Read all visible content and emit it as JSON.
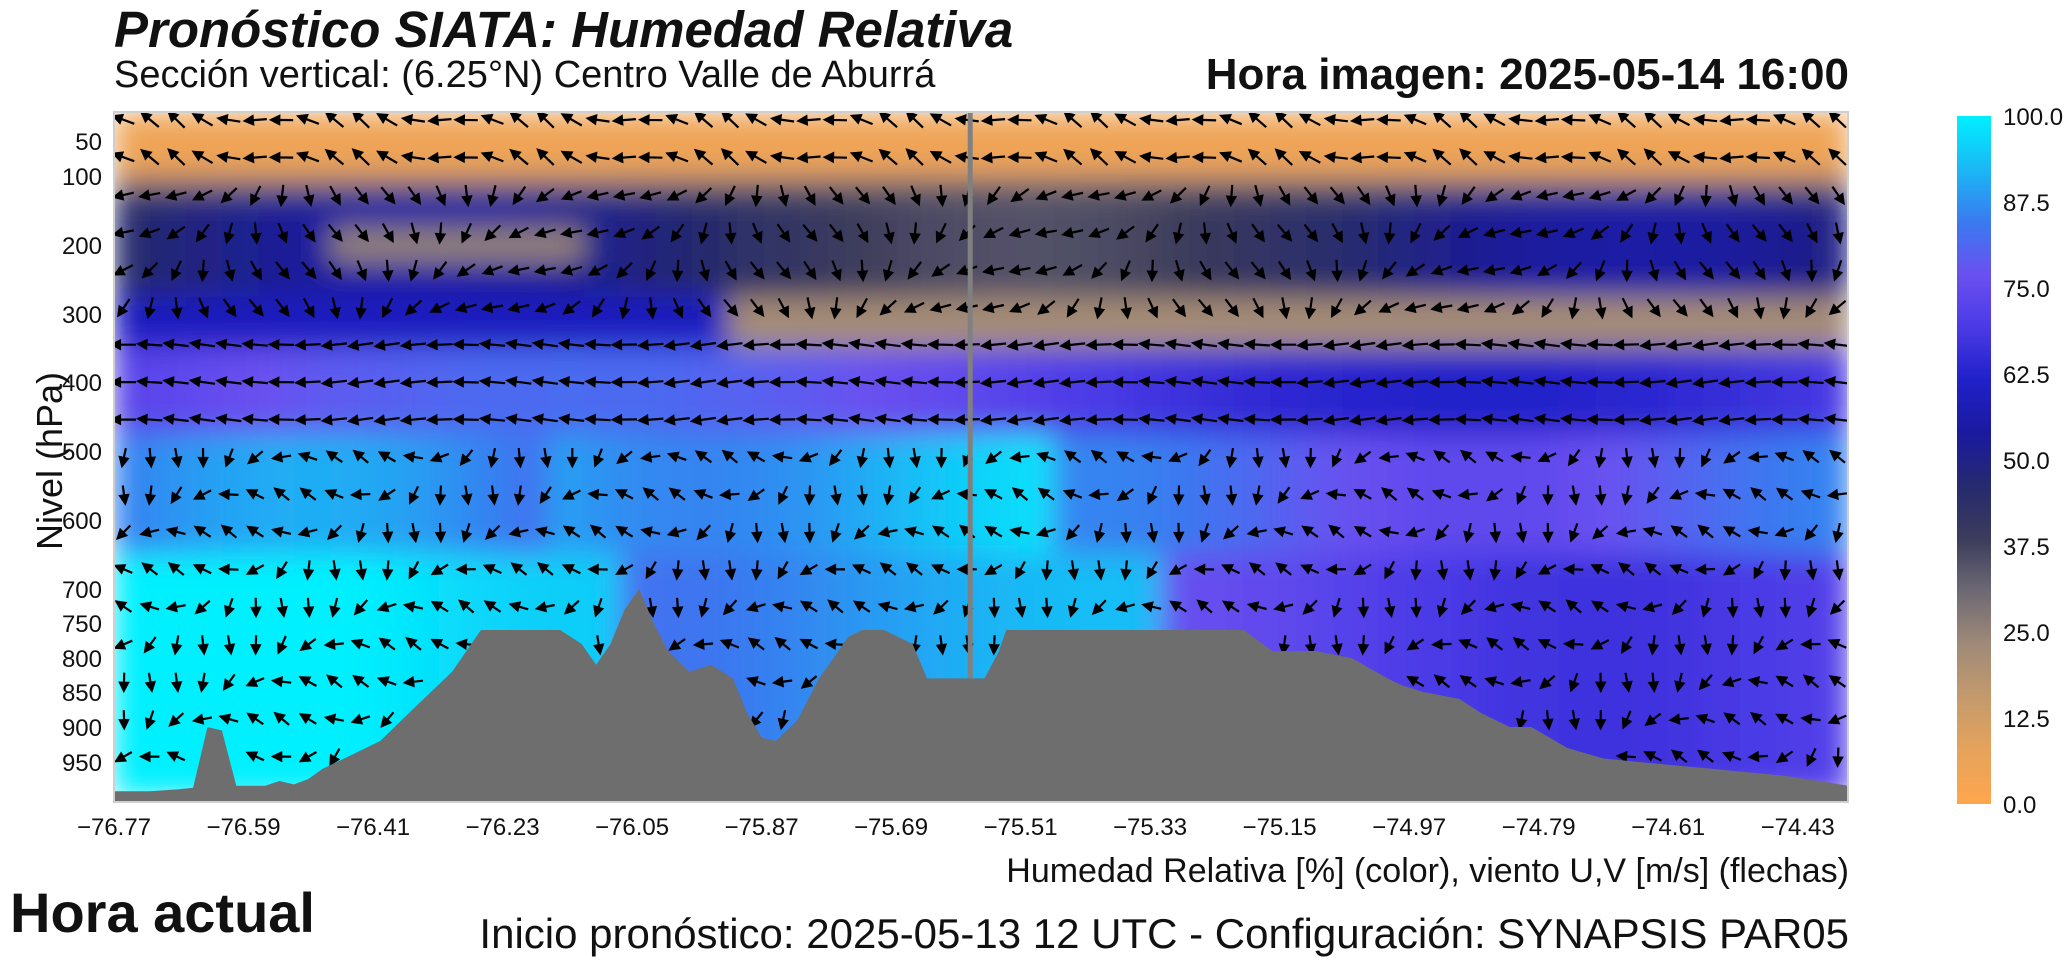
{
  "header": {
    "title": "Pronóstico SIATA: Humedad Relativa",
    "subtitle": "Sección vertical: (6.25°N) Centro Valle de Aburrá",
    "hora_imagen": "Hora imagen: 2025-05-14 16:00"
  },
  "footer": {
    "hora_actual": "Hora actual",
    "xlabel": "Humedad Relativa [%] (color), viento U,V [m/s] (flechas)",
    "init": "Inicio pronóstico: 2025-05-13 12 UTC - Configuración: SYNAPSIS PAR05"
  },
  "colors": {
    "terrain": "#6e6e6e",
    "marker_line": "#808080",
    "arrows": "#000000",
    "colormap": [
      "#ffa64d",
      "#e6a35c",
      "#c49a6c",
      "#a08a78",
      "#6e6a74",
      "#3c3c5c",
      "#262a6e",
      "#1a1a9e",
      "#2020c8",
      "#4a3ae6",
      "#6a50f0",
      "#3a7af0",
      "#1ab8f5",
      "#00f0ff"
    ]
  },
  "chart_data": {
    "type": "heatmap",
    "title": "Pronóstico SIATA: Humedad Relativa",
    "subtitle": "Sección vertical: (6.25°N) Centro Valle de Aburrá",
    "xlabel": "Humedad Relativa [%] (color), viento U,V [m/s] (flechas)",
    "ylabel": "Nivel (hPa)",
    "xlim": [
      -76.77,
      -74.36
    ],
    "x_ticks": [
      "−76.77",
      "−76.59",
      "−76.41",
      "−76.23",
      "−76.05",
      "−75.87",
      "−75.69",
      "−75.51",
      "−75.33",
      "−75.15",
      "−74.97",
      "−74.79",
      "−74.61",
      "−74.43"
    ],
    "x_tick_values": [
      -76.77,
      -76.59,
      -76.41,
      -76.23,
      -76.05,
      -75.87,
      -75.69,
      -75.51,
      -75.33,
      -75.15,
      -74.97,
      -74.79,
      -74.61,
      -74.43
    ],
    "y_ticks": [
      "50",
      "100",
      "200",
      "300",
      "400",
      "500",
      "600",
      "700",
      "750",
      "800",
      "850",
      "900",
      "950"
    ],
    "y_tick_values": [
      50,
      100,
      200,
      300,
      400,
      500,
      600,
      700,
      750,
      800,
      850,
      900,
      950
    ],
    "colorbar": {
      "ticks": [
        "0.0",
        "12.5",
        "25.0",
        "37.5",
        "50.0",
        "62.5",
        "75.0",
        "87.5",
        "100.0"
      ],
      "tick_values": [
        0,
        12.5,
        25,
        37.5,
        50,
        62.5,
        75,
        87.5,
        100
      ],
      "range": [
        0,
        100
      ],
      "position": "right"
    },
    "marker_longitude": -75.58,
    "terrain": {
      "lon": [
        -76.77,
        -76.72,
        -76.68,
        -76.66,
        -76.64,
        -76.62,
        -76.6,
        -76.56,
        -76.54,
        -76.52,
        -76.5,
        -76.48,
        -76.46,
        -76.44,
        -76.4,
        -76.36,
        -76.3,
        -76.26,
        -76.24,
        -76.2,
        -76.15,
        -76.12,
        -76.1,
        -76.08,
        -76.06,
        -76.04,
        -76.02,
        -76.0,
        -75.97,
        -75.94,
        -75.91,
        -75.89,
        -75.87,
        -75.85,
        -75.82,
        -75.79,
        -75.77,
        -75.75,
        -75.73,
        -75.7,
        -75.66,
        -75.64,
        -75.62,
        -75.6,
        -75.58,
        -75.56,
        -75.54,
        -75.53,
        -75.5,
        -75.45,
        -75.4,
        -75.35,
        -75.3,
        -75.25,
        -75.2,
        -75.16,
        -75.1,
        -75.05,
        -75.0,
        -74.98,
        -74.95,
        -74.9,
        -74.87,
        -74.83,
        -74.8,
        -74.75,
        -74.7,
        -74.65,
        -74.6,
        -74.55,
        -74.5,
        -74.45,
        -74.4,
        -74.36
      ],
      "pressure": [
        993,
        993,
        990,
        988,
        900,
        905,
        985,
        985,
        978,
        983,
        975,
        960,
        950,
        940,
        920,
        880,
        820,
        760,
        760,
        760,
        760,
        780,
        810,
        780,
        730,
        700,
        750,
        790,
        820,
        810,
        830,
        880,
        915,
        920,
        890,
        830,
        800,
        770,
        760,
        760,
        780,
        830,
        830,
        830,
        830,
        830,
        790,
        760,
        760,
        760,
        760,
        760,
        760,
        760,
        760,
        790,
        790,
        800,
        830,
        840,
        850,
        860,
        880,
        900,
        900,
        930,
        945,
        950,
        955,
        960,
        965,
        970,
        978,
        985
      ]
    }
  }
}
